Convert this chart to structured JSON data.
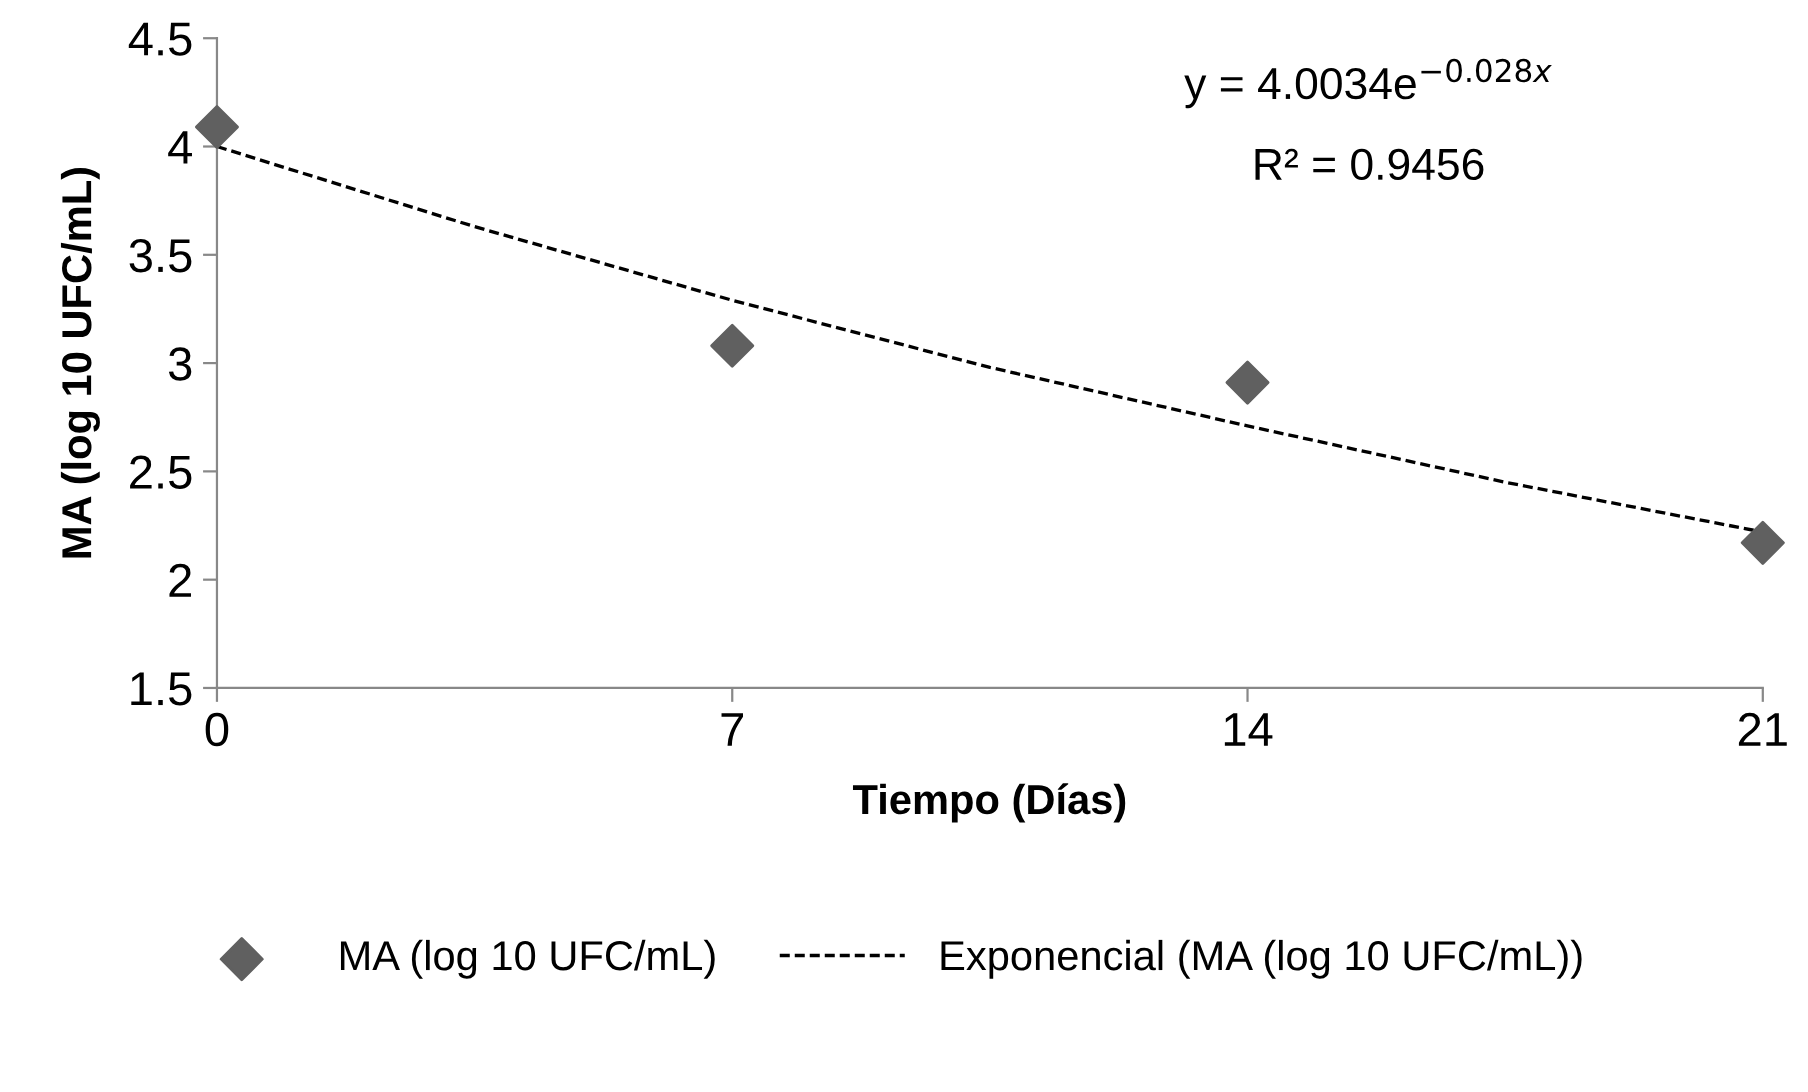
{
  "chart_data": {
    "type": "scatter",
    "xlabel": "Tiempo (Días)",
    "ylabel": "MA (log 10 UFC/mL)",
    "xlim": [
      0,
      21
    ],
    "xticks": [
      0,
      7,
      14,
      21
    ],
    "ylim": [
      1.5,
      4.5
    ],
    "yticks": [
      1.5,
      2,
      2.5,
      3,
      3.5,
      4,
      4.5
    ],
    "grid": false,
    "legend": "bottom",
    "marker": "diamond",
    "annotations": [
      "y = 4.0034e$^{−0.028x}$",
      "R² = 0.9456"
    ],
    "series": [
      {
        "name": "MA (log 10 UFC/mL)",
        "color": "#606060",
        "x": [
          0,
          7,
          14,
          21
        ],
        "values": [
          4.09,
          3.08,
          2.91,
          2.17
        ]
      },
      {
        "name": "Exponencial (MA (log 10 UFC/mL))",
        "type": "line",
        "color": "#000000",
        "marker": "none",
        "line_style": "dashed",
        "x": [
          0,
          3.5,
          7,
          10.5,
          14,
          17.5,
          21
        ],
        "values": [
          4.0,
          3.63,
          3.29,
          2.98,
          2.71,
          2.45,
          2.22
        ]
      }
    ]
  }
}
